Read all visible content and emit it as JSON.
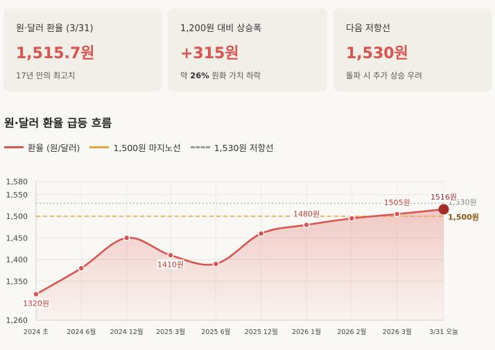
{
  "cards": [
    {
      "label": "원·달러 환율 (3/31)",
      "value": "1,515.7원",
      "note": "17년 만의 최고치",
      "note_bold": ""
    },
    {
      "label": "1,200원 대비 상승폭",
      "value": "+315원",
      "note_pre": "약 ",
      "note_bold": "26%",
      "note_post": " 원화 가치 하락"
    },
    {
      "label": "다음 저항선",
      "value": "1,530원",
      "note": "돌파 시 추가 상승 우려",
      "note_bold": ""
    }
  ],
  "section_title": "원·달러 환율 급등 흐름",
  "legend": [
    {
      "label": "환율 (원/달러)",
      "color": "#d9534f",
      "style": "solid"
    },
    {
      "label": "1,500원 마지노선",
      "color": "#e8a23a",
      "style": "solid"
    },
    {
      "label": "1,530원 저항선",
      "color": "#999999",
      "style": "dashed"
    }
  ],
  "chart_data": {
    "type": "line",
    "categories": [
      "2024 초",
      "2024 6월",
      "2024 12월",
      "2025 3월",
      "2025 6월",
      "2025 12월",
      "2026 1월",
      "2026 2월",
      "2026 3월",
      "3/31 오늘"
    ],
    "x": [
      0,
      1,
      2,
      2.97,
      3.97,
      4.97,
      5.97,
      6.97,
      7.97,
      9
    ],
    "series": [
      {
        "name": "환율 (원/달러)",
        "values": [
          1320,
          1380,
          1450,
          1410,
          1390,
          1460,
          1480,
          1495,
          1505,
          1516
        ],
        "color": "#d9534f"
      }
    ],
    "data_labels": [
      {
        "index": 0,
        "text": "1320원"
      },
      {
        "index": 3,
        "text": "1410원"
      },
      {
        "index": 6,
        "text": "1480원"
      },
      {
        "index": 8,
        "text": "1505원"
      },
      {
        "index": 9,
        "text": "1516원"
      }
    ],
    "reference_lines": [
      {
        "value": 1500,
        "label": "1,500원",
        "color": "#e8a23a",
        "style": "dashed"
      },
      {
        "value": 1530,
        "label": "1,530원",
        "color": "#aaaaaa",
        "style": "dotted"
      }
    ],
    "ylim": [
      1260,
      1580
    ],
    "yticks": [
      1260,
      1350,
      1400,
      1450,
      1500,
      1550,
      1580
    ],
    "ytick_labels": [
      "1,260",
      "1,350",
      "1,400",
      "1,450",
      "1,500",
      "1,550",
      "1,580"
    ],
    "xlabel": "",
    "ylabel": "",
    "grid": true
  }
}
